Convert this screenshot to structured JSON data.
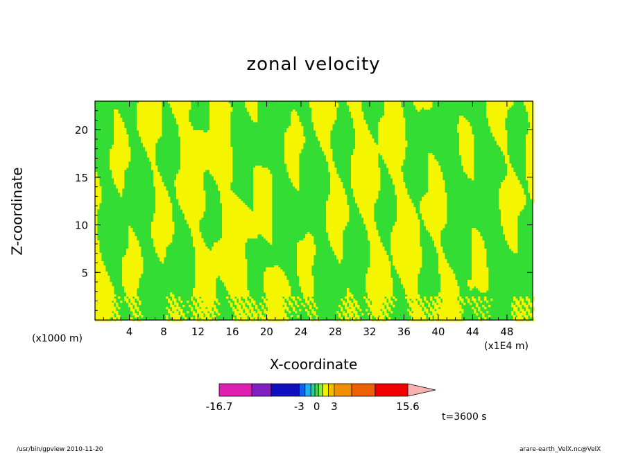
{
  "chart_data": {
    "type": "heatmap",
    "title": "zonal velocity",
    "xlabel": "X-coordinate",
    "ylabel": "Z-coordinate",
    "x_unit_left": "(x1000 m)",
    "x_unit_right": "(x1E4 m)",
    "xlim": [
      0,
      51
    ],
    "ylim": [
      0,
      23
    ],
    "x_ticks": [
      4,
      8,
      12,
      16,
      20,
      24,
      28,
      32,
      36,
      40,
      44,
      48
    ],
    "y_ticks": [
      5,
      10,
      15,
      20
    ],
    "time_label": "t=3600 s",
    "colorbar": {
      "colors": [
        "#e020b0",
        "#8020c0",
        "#1010c0",
        "#1060f0",
        "#20b0f0",
        "#20d0a0",
        "#40e040",
        "#80f040",
        "#f0f000",
        "#f0c000",
        "#f09000",
        "#f06000",
        "#f00000",
        "#f07878",
        "#f8b0b0"
      ],
      "labels": [
        {
          "value": -16.7,
          "text": "-16.7"
        },
        {
          "value": -3,
          "text": "-3"
        },
        {
          "value": 0,
          "text": "0"
        },
        {
          "value": 3,
          "text": "3"
        },
        {
          "value": 15.6,
          "text": "15.6"
        }
      ]
    },
    "field_colors": {
      "negative": "#33dd33",
      "positive": "#f5f500",
      "contour": "#000000"
    }
  },
  "footer": {
    "left": "/usr/bin/gpview   2010-11-20",
    "right": "arare-earth_VelX.nc@VelX"
  }
}
